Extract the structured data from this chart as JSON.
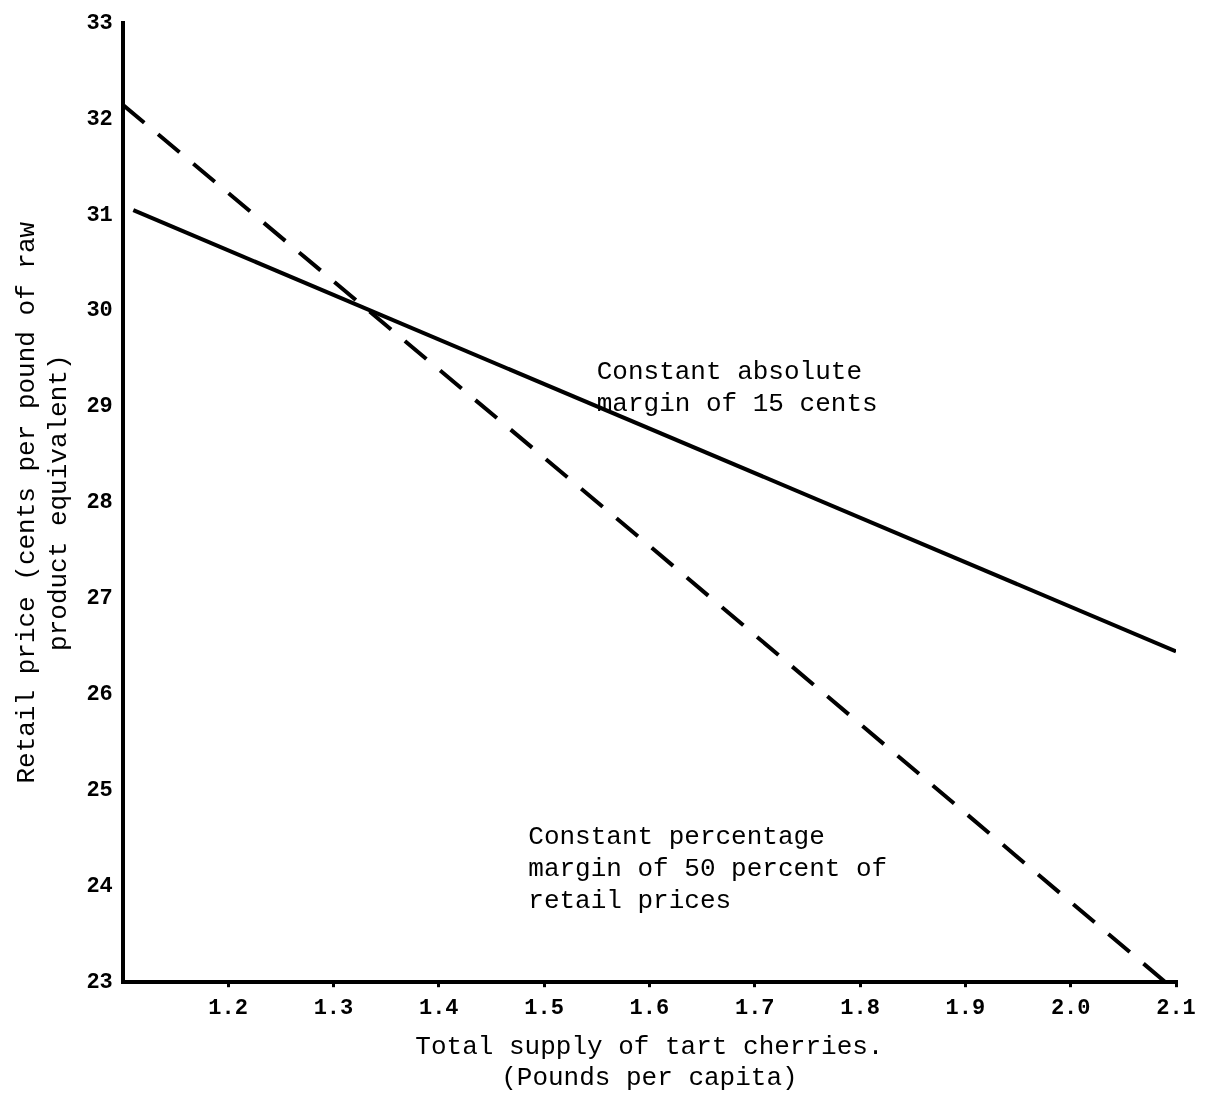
{
  "chart_data": {
    "type": "line",
    "xlabel": "Total supply of tart cherries.\n(Pounds per capita)",
    "ylabel": "Retail price (cents per pound of raw\nproduct equivalent)",
    "series": [
      {
        "color": "#000000",
        "line_style": "solid",
        "x": [
          1.11,
          2.1
        ],
        "values": [
          31.05,
          26.45
        ]
      },
      {
        "color": "#000000",
        "line_style": "dashed",
        "x": [
          1.1,
          1.6,
          2.09
        ],
        "values": [
          32.15,
          27.55,
          23.0
        ]
      }
    ],
    "marker": "none",
    "xlim": [
      1.1,
      2.1
    ],
    "ylim": [
      23,
      33
    ],
    "xticks": [
      1.2,
      1.3,
      1.4,
      1.5,
      1.6,
      1.7,
      1.8,
      1.9,
      {
        "value": 2,
        "label": "2.0"
      },
      2.1
    ],
    "yticks": [
      23,
      24,
      25,
      26,
      27,
      28,
      29,
      30,
      31,
      32,
      33
    ],
    "annotations": [
      "Constant absolute\nmargin of 15 cents",
      "Constant percentage\nmargin of 50 percent of\nretail prices"
    ]
  }
}
